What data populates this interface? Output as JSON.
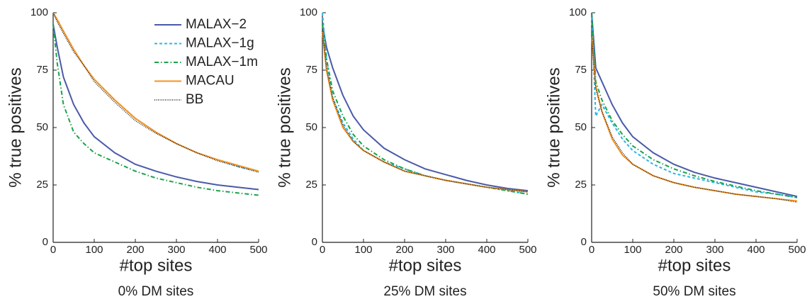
{
  "chart_data": [
    {
      "type": "line",
      "title": "0% DM sites",
      "x_label": "#top sites",
      "y_label": "% true positives",
      "x": [
        0,
        10,
        25,
        50,
        75,
        100,
        150,
        200,
        250,
        300,
        350,
        400,
        450,
        500
      ],
      "xlim": [
        0,
        500
      ],
      "ylim": [
        0,
        100
      ],
      "xticks": [
        0,
        100,
        200,
        300,
        400,
        500
      ],
      "yticks": [
        0,
        25,
        50,
        75,
        100
      ],
      "legend": "upper right",
      "series": [
        {
          "name": "MALAX−2",
          "color": "#4a5aa8",
          "style": "solid",
          "values": [
            95,
            85,
            72,
            60,
            52,
            46,
            39,
            34,
            31,
            28.5,
            26.5,
            25,
            24,
            23
          ]
        },
        {
          "name": "MALAX−1g",
          "color": "#29b6e8",
          "style": "dashed",
          "values": [
            100,
            97,
            92,
            84,
            77,
            71,
            62,
            54,
            48,
            43,
            39,
            36,
            33,
            31
          ]
        },
        {
          "name": "MALAX−1m",
          "color": "#1aa34a",
          "style": "dashdot",
          "values": [
            95,
            78,
            60,
            48,
            43,
            39,
            35,
            31,
            28,
            26,
            24,
            22.5,
            21.5,
            20.5
          ]
        },
        {
          "name": "MACAU",
          "color": "#f7931e",
          "style": "solid",
          "values": [
            100,
            97,
            92,
            84,
            77,
            71,
            62,
            54,
            48,
            43,
            39,
            36,
            33.5,
            31
          ]
        },
        {
          "name": "BB",
          "color": "#222222",
          "style": "dotted",
          "values": [
            100,
            96,
            91,
            83,
            77,
            70,
            61,
            53,
            47.5,
            43,
            39,
            35.5,
            33,
            30.5
          ]
        }
      ]
    },
    {
      "type": "line",
      "title": "25% DM sites",
      "x_label": "#top sites",
      "y_label": "% true positives",
      "x": [
        0,
        10,
        25,
        50,
        75,
        100,
        150,
        200,
        250,
        300,
        350,
        400,
        450,
        500
      ],
      "xlim": [
        0,
        500
      ],
      "ylim": [
        0,
        100
      ],
      "xticks": [
        0,
        100,
        200,
        300,
        400,
        500
      ],
      "yticks": [
        0,
        25,
        50,
        75,
        100
      ],
      "series": [
        {
          "name": "MALAX−2",
          "color": "#4a5aa8",
          "style": "solid",
          "values": [
            95,
            85,
            76,
            64,
            55,
            49,
            41,
            36,
            32,
            29.5,
            27,
            25,
            23.5,
            22.5
          ]
        },
        {
          "name": "MALAX−1g",
          "color": "#29b6e8",
          "style": "dashed",
          "values": [
            100,
            80,
            63,
            52,
            45,
            40,
            35,
            32,
            29,
            27,
            25.5,
            24,
            22.5,
            21
          ]
        },
        {
          "name": "MALAX−1m",
          "color": "#1aa34a",
          "style": "dashdot",
          "values": [
            95,
            80,
            66,
            55,
            47,
            42,
            36,
            32,
            29,
            27,
            25.5,
            24,
            22.5,
            21
          ]
        },
        {
          "name": "MACAU",
          "color": "#f7931e",
          "style": "solid",
          "values": [
            92,
            75,
            62,
            50,
            44,
            40,
            35,
            31,
            29,
            27,
            25.5,
            24,
            23,
            22
          ]
        },
        {
          "name": "BB",
          "color": "#222222",
          "style": "dotted",
          "values": [
            92,
            76,
            63,
            51,
            44,
            40,
            35,
            31,
            29,
            27,
            25.5,
            24,
            23,
            22
          ]
        }
      ]
    },
    {
      "type": "line",
      "title": "50% DM sites",
      "x_label": "#top sites",
      "y_label": "% true positives",
      "x": [
        0,
        10,
        25,
        50,
        75,
        100,
        150,
        200,
        250,
        300,
        350,
        400,
        450,
        500
      ],
      "xlim": [
        0,
        500
      ],
      "ylim": [
        0,
        100
      ],
      "xticks": [
        0,
        100,
        200,
        300,
        400,
        500
      ],
      "yticks": [
        0,
        25,
        50,
        75,
        100
      ],
      "series": [
        {
          "name": "MALAX−2",
          "color": "#4a5aa8",
          "style": "solid",
          "values": [
            100,
            76,
            70,
            60,
            52,
            46,
            39,
            34,
            30.5,
            28,
            26,
            24,
            22,
            20
          ]
        },
        {
          "name": "MALAX−1g",
          "color": "#29b6e8",
          "style": "dashed",
          "values": [
            100,
            55,
            60,
            52,
            45,
            40,
            34,
            30,
            28,
            26,
            24,
            22,
            21,
            19.5
          ]
        },
        {
          "name": "MALAX−1m",
          "color": "#1aa34a",
          "style": "dashdot",
          "values": [
            100,
            70,
            62,
            53,
            47,
            42,
            36,
            32,
            29,
            26.5,
            24.5,
            22.5,
            21,
            19.5
          ]
        },
        {
          "name": "MACAU",
          "color": "#f7931e",
          "style": "solid",
          "values": [
            90,
            68,
            57,
            45,
            38,
            34,
            29,
            26,
            24,
            22.5,
            21,
            20,
            19,
            18
          ]
        },
        {
          "name": "BB",
          "color": "#222222",
          "style": "dotted",
          "values": [
            90,
            67,
            57,
            46,
            39,
            34,
            29,
            26,
            24,
            22.5,
            21,
            20,
            19,
            17.5
          ]
        }
      ]
    }
  ]
}
